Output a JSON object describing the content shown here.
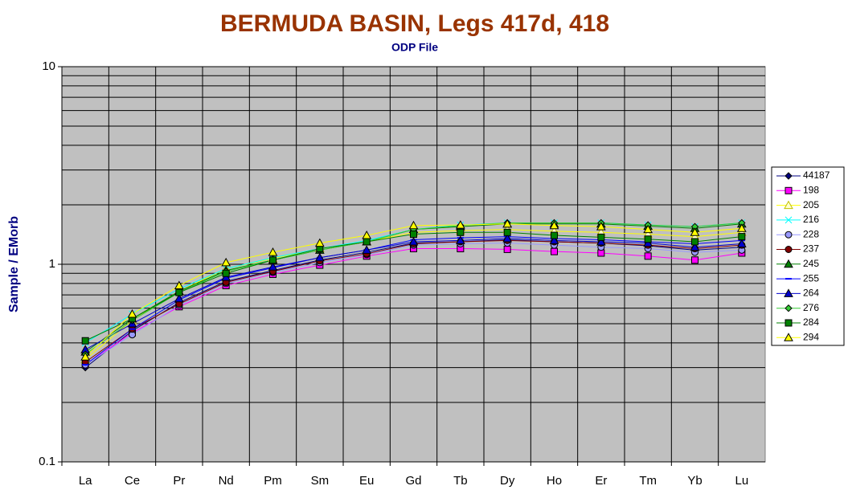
{
  "chart_data": {
    "type": "line",
    "title": "BERMUDA BASIN, Legs 417d, 418",
    "subtitle": "ODP File",
    "y_label": "Sample / EMorb",
    "yscale": "log",
    "ylim": [
      0.1,
      10
    ],
    "yticks": [
      0.1,
      1,
      10
    ],
    "y_minor_ticks": [
      0.2,
      0.3,
      0.4,
      0.5,
      0.6,
      0.7,
      0.8,
      0.9,
      2,
      3,
      4,
      5,
      6,
      7,
      8,
      9
    ],
    "grid": true,
    "legend": "right",
    "categories": [
      "La",
      "Ce",
      "Pr",
      "Nd",
      "Pm",
      "Sm",
      "Eu",
      "Gd",
      "Tb",
      "Dy",
      "Ho",
      "Er",
      "Tm",
      "Yb",
      "Lu"
    ],
    "series": [
      {
        "name": "44187",
        "color": "#000080",
        "marker": "diamond",
        "values": [
          0.3,
          0.46,
          0.64,
          0.82,
          0.93,
          1.05,
          1.15,
          1.28,
          1.3,
          1.33,
          1.3,
          1.28,
          1.24,
          1.18,
          1.22
        ]
      },
      {
        "name": "198",
        "color": "#ff00ff",
        "marker": "square",
        "values": [
          0.31,
          0.45,
          0.61,
          0.78,
          0.89,
          0.99,
          1.1,
          1.2,
          1.2,
          1.19,
          1.16,
          1.14,
          1.1,
          1.05,
          1.14
        ]
      },
      {
        "name": "205",
        "color": "#ffff00",
        "marker": "triangle-open",
        "values": [
          0.33,
          0.52,
          0.73,
          0.95,
          1.07,
          1.2,
          1.3,
          1.45,
          1.48,
          1.5,
          1.47,
          1.45,
          1.42,
          1.38,
          1.45
        ]
      },
      {
        "name": "216",
        "color": "#00ffff",
        "marker": "x",
        "values": [
          0.4,
          0.56,
          0.75,
          0.95,
          1.08,
          1.2,
          1.32,
          1.5,
          1.58,
          1.62,
          1.62,
          1.62,
          1.58,
          1.55,
          1.62
        ]
      },
      {
        "name": "228",
        "color": "#9999ff",
        "marker": "circle",
        "values": [
          0.31,
          0.44,
          0.62,
          0.8,
          0.91,
          1.02,
          1.12,
          1.25,
          1.27,
          1.28,
          1.25,
          1.22,
          1.2,
          1.15,
          1.18
        ]
      },
      {
        "name": "237",
        "color": "#800000",
        "marker": "circle",
        "values": [
          0.32,
          0.47,
          0.63,
          0.81,
          0.92,
          1.04,
          1.13,
          1.27,
          1.3,
          1.32,
          1.3,
          1.28,
          1.25,
          1.2,
          1.25
        ]
      },
      {
        "name": "245",
        "color": "#008000",
        "marker": "triangle",
        "values": [
          0.36,
          0.53,
          0.73,
          0.93,
          1.05,
          1.18,
          1.3,
          1.5,
          1.55,
          1.6,
          1.6,
          1.6,
          1.56,
          1.52,
          1.6
        ]
      },
      {
        "name": "255",
        "color": "#0000ff",
        "marker": "dash",
        "values": [
          0.31,
          0.47,
          0.66,
          0.85,
          0.96,
          1.08,
          1.18,
          1.33,
          1.36,
          1.38,
          1.35,
          1.33,
          1.3,
          1.27,
          1.32
        ]
      },
      {
        "name": "264",
        "color": "#0000cc",
        "marker": "triangle",
        "values": [
          0.37,
          0.5,
          0.67,
          0.86,
          0.97,
          1.08,
          1.18,
          1.3,
          1.32,
          1.35,
          1.32,
          1.3,
          1.28,
          1.22,
          1.27
        ]
      },
      {
        "name": "276",
        "color": "#33cc33",
        "marker": "diamond",
        "values": [
          0.35,
          0.52,
          0.72,
          0.92,
          1.05,
          1.18,
          1.3,
          1.5,
          1.57,
          1.62,
          1.62,
          1.62,
          1.58,
          1.55,
          1.62
        ]
      },
      {
        "name": "284",
        "color": "#008000",
        "marker": "square",
        "values": [
          0.41,
          0.53,
          0.72,
          0.9,
          1.05,
          1.2,
          1.3,
          1.42,
          1.45,
          1.45,
          1.4,
          1.37,
          1.34,
          1.3,
          1.38
        ]
      },
      {
        "name": "294",
        "color": "#ffff00",
        "marker": "triangle",
        "values": [
          0.34,
          0.56,
          0.78,
          1.02,
          1.15,
          1.28,
          1.4,
          1.57,
          1.58,
          1.6,
          1.57,
          1.55,
          1.5,
          1.45,
          1.52
        ]
      }
    ]
  }
}
